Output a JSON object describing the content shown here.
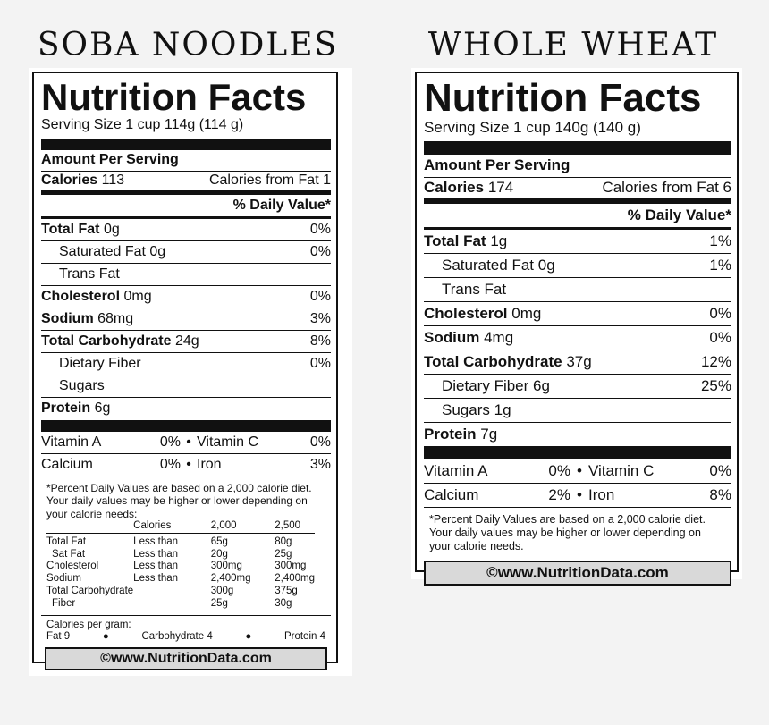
{
  "headings": {
    "left": "SOBA NOODLES",
    "right": "WHOLE WHEAT"
  },
  "soba": {
    "title": "Nutrition Facts",
    "serving": "Serving Size 1 cup 114g (114 g)",
    "amount_per_serving": "Amount Per Serving",
    "calories_label": "Calories",
    "calories_value": "113",
    "calories_fat": "Calories from Fat 1",
    "daily_value_header": "% Daily Value*",
    "rows": [
      {
        "name": "Total Fat",
        "amount": "0g",
        "pct": "0%"
      },
      {
        "name": "Saturated Fat",
        "amount": "0g",
        "pct": "0%"
      },
      {
        "name": "Trans Fat",
        "amount": "",
        "pct": ""
      },
      {
        "name": "Cholesterol",
        "amount": "0mg",
        "pct": "0%"
      },
      {
        "name": "Sodium",
        "amount": "68mg",
        "pct": "3%"
      },
      {
        "name": "Total Carbohydrate",
        "amount": "24g",
        "pct": "8%"
      },
      {
        "name": "Dietary Fiber",
        "amount": "",
        "pct": "0%"
      },
      {
        "name": "Sugars",
        "amount": "",
        "pct": ""
      },
      {
        "name": "Protein",
        "amount": "6g",
        "pct": ""
      }
    ],
    "vitamins": [
      {
        "a_name": "Vitamin A",
        "a_pct": "0%",
        "b_name": "Vitamin C",
        "b_pct": "0%"
      },
      {
        "a_name": "Calcium",
        "a_pct": "0%",
        "b_name": "Iron",
        "b_pct": "3%"
      }
    ],
    "footnote": "*Percent Daily Values are based on a 2,000 calorie diet. Your daily values may be higher or lower depending on your calorie needs:",
    "dv_table": {
      "header": [
        "",
        "Calories",
        "2,000",
        "2,500"
      ],
      "rows": [
        [
          "Total Fat",
          "Less than",
          "65g",
          "80g"
        ],
        [
          "Sat Fat",
          "Less than",
          "20g",
          "25g"
        ],
        [
          "Cholesterol",
          "Less than",
          "300mg",
          "300mg"
        ],
        [
          "Sodium",
          "Less than",
          "2,400mg",
          "2,400mg"
        ],
        [
          "Total Carbohydrate",
          "",
          "300g",
          "375g"
        ],
        [
          "Fiber",
          "",
          "25g",
          "30g"
        ]
      ]
    },
    "cal_per_gram": "Calories per gram:",
    "cal_fat": "Fat 9",
    "cal_carb": "Carbohydrate 4",
    "cal_protein": "Protein 4",
    "copyright": "©www.NutritionData.com"
  },
  "wheat": {
    "title": "Nutrition Facts",
    "serving": "Serving Size 1 cup 140g (140 g)",
    "amount_per_serving": "Amount Per Serving",
    "calories_label": "Calories",
    "calories_value": "174",
    "calories_fat": "Calories from Fat 6",
    "daily_value_header": "% Daily Value*",
    "rows": [
      {
        "name": "Total Fat",
        "amount": "1g",
        "pct": "1%"
      },
      {
        "name": "Saturated Fat",
        "amount": "0g",
        "pct": "1%"
      },
      {
        "name": "Trans Fat",
        "amount": "",
        "pct": ""
      },
      {
        "name": "Cholesterol",
        "amount": "0mg",
        "pct": "0%"
      },
      {
        "name": "Sodium",
        "amount": "4mg",
        "pct": "0%"
      },
      {
        "name": "Total Carbohydrate",
        "amount": "37g",
        "pct": "12%"
      },
      {
        "name": "Dietary Fiber",
        "amount": "6g",
        "pct": "25%"
      },
      {
        "name": "Sugars",
        "amount": "1g",
        "pct": ""
      },
      {
        "name": "Protein",
        "amount": "7g",
        "pct": ""
      }
    ],
    "vitamins": [
      {
        "a_name": "Vitamin A",
        "a_pct": "0%",
        "b_name": "Vitamin C",
        "b_pct": "0%"
      },
      {
        "a_name": "Calcium",
        "a_pct": "2%",
        "b_name": "Iron",
        "b_pct": "8%"
      }
    ],
    "footnote": "*Percent Daily Values are based on a 2,000 calorie diet. Your daily values may be higher or lower depending on your calorie needs.",
    "copyright": "©www.NutritionData.com"
  }
}
